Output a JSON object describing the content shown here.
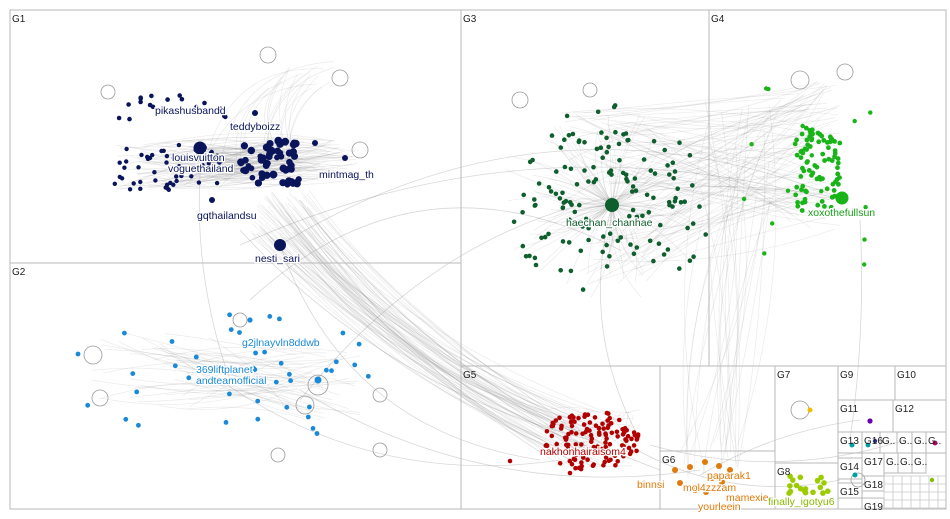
{
  "groups": [
    {
      "id": "G1",
      "label": "G1"
    },
    {
      "id": "G2",
      "label": "G2"
    },
    {
      "id": "G3",
      "label": "G3"
    },
    {
      "id": "G4",
      "label": "G4"
    },
    {
      "id": "G5",
      "label": "G5"
    },
    {
      "id": "G6",
      "label": "G6"
    },
    {
      "id": "G7",
      "label": "G7"
    },
    {
      "id": "G8",
      "label": "G8"
    },
    {
      "id": "G9",
      "label": "G9"
    },
    {
      "id": "G10",
      "label": "G10"
    },
    {
      "id": "G11",
      "label": "G11"
    },
    {
      "id": "G12",
      "label": "G12"
    },
    {
      "id": "G13",
      "label": "G13"
    },
    {
      "id": "G14",
      "label": "G14"
    },
    {
      "id": "G15",
      "label": "G15"
    },
    {
      "id": "G16",
      "label": "G16"
    },
    {
      "id": "G17",
      "label": "G17"
    },
    {
      "id": "G18",
      "label": "G18"
    },
    {
      "id": "G19",
      "label": "G19"
    },
    {
      "id": "Gs1",
      "label": "G.."
    },
    {
      "id": "Gs2",
      "label": "G.."
    },
    {
      "id": "Gs3",
      "label": "G.."
    },
    {
      "id": "Gs4",
      "label": "G.."
    },
    {
      "id": "Gs5",
      "label": "G.."
    },
    {
      "id": "Gs6",
      "label": "G.."
    },
    {
      "id": "Gs7",
      "label": "G.."
    }
  ],
  "colors": {
    "G1": "#0a145a",
    "G2": "#1a8ad8",
    "G3": "#0f5e2e",
    "G4": "#18b418",
    "G5": "#b00000",
    "G6": "#e07a0a",
    "G7": "#e8c000",
    "G8": "#9ccc00",
    "G11": "#6a00b0",
    "G13": "#00a0a0",
    "G16": "#c00060",
    "G17": "#303090",
    "G18": "#80c000"
  },
  "node_labels": {
    "G1": [
      "pikashusbandd",
      "teddyboizz",
      "louisvuitton",
      "voguethailand",
      "mintmag_th",
      "gqthailandsu",
      "nesti_sari"
    ],
    "G2": [
      "g2jlnayvln8ddwb",
      "369liftplanet",
      "andteamofficial"
    ],
    "G3": [
      "haechan_chanhae"
    ],
    "G4": [
      "xoxothefullsun"
    ],
    "G5": [
      "nakhonhairaisom4"
    ],
    "G6": [
      "binnsi",
      "mol4zzzam",
      "paparak1",
      "mamexie",
      "yourleein"
    ],
    "G8": [
      "finally_igotyu6"
    ]
  }
}
